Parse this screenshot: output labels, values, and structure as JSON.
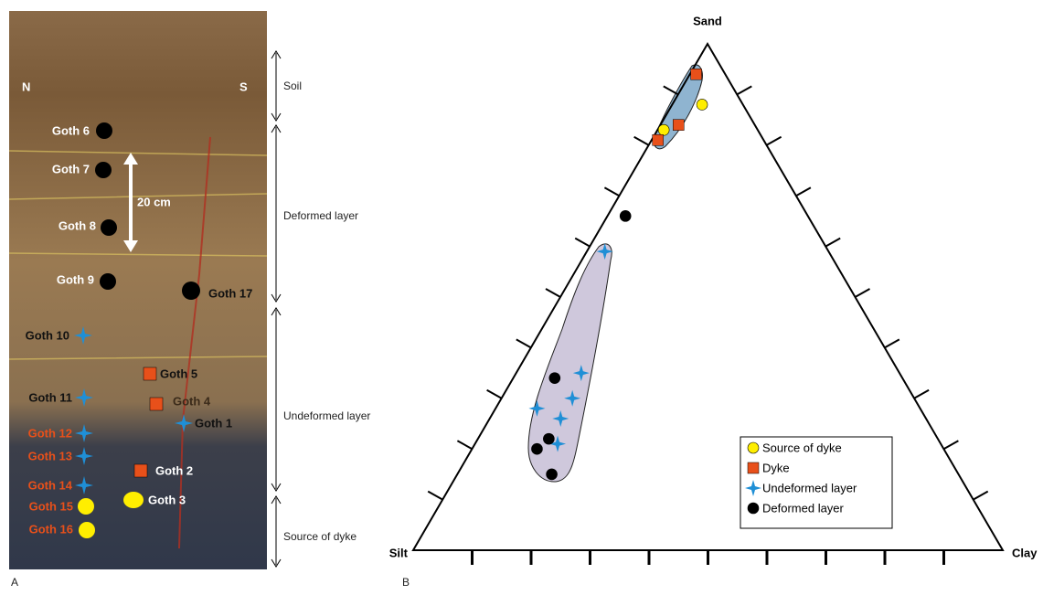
{
  "photo": {
    "compass": [
      "N",
      "S"
    ],
    "scale": "20 cm",
    "samples": [
      "Goth 1",
      "Goth 2",
      "Goth 3",
      "Goth 4",
      "Goth 5",
      "Goth 6",
      "Goth 7",
      "Goth 8",
      "Goth 9",
      "Goth 10",
      "Goth 11",
      "Goth 12",
      "Goth 13",
      "Goth 14",
      "Goth 15",
      "Goth 16",
      "Goth 17"
    ],
    "zones": [
      "Soil",
      "Deformed layer",
      "Undeformed layer",
      "Source of dyke"
    ],
    "panel": "A"
  },
  "chart_data": {
    "type": "ternary",
    "panel": "B",
    "axes": {
      "top": "Sand",
      "left": "Silt",
      "right": "Clay"
    },
    "ticks": [
      10,
      20,
      30,
      40,
      50,
      60,
      70,
      80,
      90
    ],
    "series": [
      {
        "name": "Source of dyke",
        "color": "#ffee00",
        "marker": "circle",
        "sand": [
          94,
          88,
          83
        ],
        "clay": [
          1,
          5,
          1
        ],
        "silt": [
          5,
          7,
          16
        ]
      },
      {
        "name": "Dyke",
        "color": "#e8501a",
        "marker": "square",
        "sand": [
          94,
          84,
          81
        ],
        "clay": [
          1,
          3,
          1
        ],
        "silt": [
          5,
          13,
          18
        ]
      },
      {
        "name": "Undeformed layer",
        "color": "#1f8fd6",
        "marker": "star",
        "sand": [
          59,
          35,
          30,
          28,
          26,
          21
        ],
        "clay": [
          3,
          11,
          12,
          7,
          12,
          14
        ],
        "silt": [
          38,
          54,
          58,
          65,
          62,
          65
        ]
      },
      {
        "name": "Deformed layer",
        "color": "#000000",
        "marker": "circle",
        "sand": [
          66,
          34,
          22,
          20,
          15
        ],
        "clay": [
          3,
          7,
          12,
          11,
          16
        ],
        "silt": [
          31,
          59,
          66,
          69,
          69
        ]
      }
    ]
  }
}
